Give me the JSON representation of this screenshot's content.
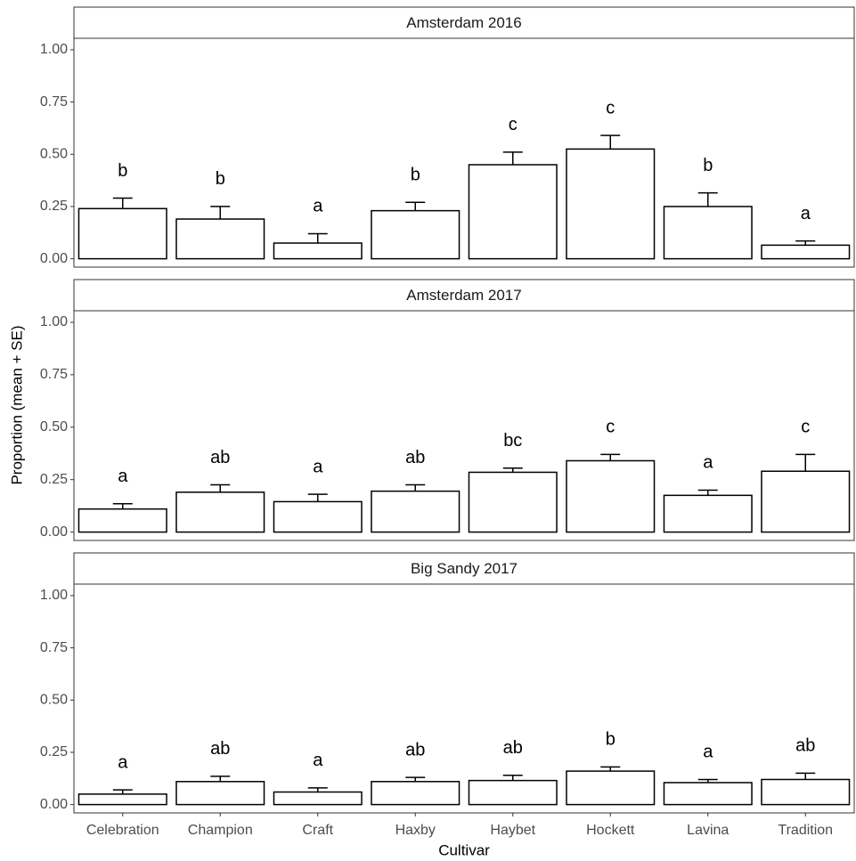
{
  "axis_labels": {
    "y": "Proportion (mean + SE)",
    "x": "Cultivar"
  },
  "chart_data": [
    {
      "type": "bar",
      "title": "Amsterdam 2016",
      "values": [
        0.24,
        0.19,
        0.075,
        0.23,
        0.45,
        0.525,
        0.25,
        0.065
      ],
      "errors": [
        0.05,
        0.06,
        0.045,
        0.04,
        0.06,
        0.065,
        0.065,
        0.02
      ],
      "annotations": [
        "b",
        "b",
        "a",
        "b",
        "c",
        "c",
        "b",
        "a"
      ],
      "ylim": [
        -0.04,
        1.055
      ],
      "yticks": [
        {
          "value": 0,
          "label": "0.00"
        },
        {
          "value": 0.25,
          "label": "0.25"
        },
        {
          "value": 0.5,
          "label": "0.50"
        },
        {
          "value": 0.75,
          "label": "0.75"
        },
        {
          "value": 1,
          "label": "1.00"
        }
      ],
      "color": "#ffffff"
    },
    {
      "type": "bar",
      "title": "Amsterdam 2017",
      "values": [
        0.11,
        0.19,
        0.145,
        0.195,
        0.285,
        0.34,
        0.175,
        0.29
      ],
      "errors": [
        0.025,
        0.035,
        0.035,
        0.03,
        0.02,
        0.03,
        0.025,
        0.08
      ],
      "annotations": [
        "a",
        "ab",
        "a",
        "ab",
        "bc",
        "c",
        "a",
        "c"
      ],
      "ylim": [
        -0.04,
        1.055
      ],
      "yticks": [
        {
          "value": 0,
          "label": "0.00"
        },
        {
          "value": 0.25,
          "label": "0.25"
        },
        {
          "value": 0.5,
          "label": "0.50"
        },
        {
          "value": 0.75,
          "label": "0.75"
        },
        {
          "value": 1,
          "label": "1.00"
        }
      ],
      "color": "#ffffff"
    },
    {
      "type": "bar",
      "title": "Big Sandy 2017",
      "categories": [
        "Celebration",
        "Champion",
        "Craft",
        "Haxby",
        "Haybet",
        "Hockett",
        "Lavina",
        "Tradition"
      ],
      "values": [
        0.05,
        0.11,
        0.06,
        0.11,
        0.115,
        0.16,
        0.105,
        0.12
      ],
      "errors": [
        0.02,
        0.025,
        0.02,
        0.02,
        0.025,
        0.02,
        0.015,
        0.03
      ],
      "annotations": [
        "a",
        "ab",
        "a",
        "ab",
        "ab",
        "b",
        "a",
        "ab"
      ],
      "ylim": [
        -0.04,
        1.055
      ],
      "yticks": [
        {
          "value": 0,
          "label": "0.00"
        },
        {
          "value": 0.25,
          "label": "0.25"
        },
        {
          "value": 0.5,
          "label": "0.50"
        },
        {
          "value": 0.75,
          "label": "0.75"
        },
        {
          "value": 1,
          "label": "1.00"
        }
      ],
      "color": "#ffffff"
    }
  ]
}
